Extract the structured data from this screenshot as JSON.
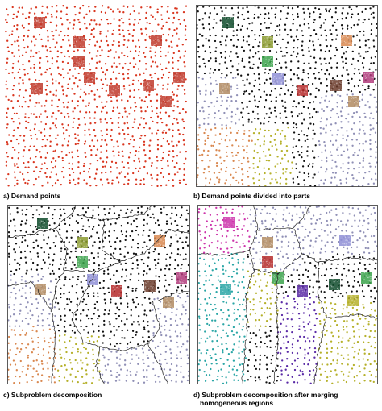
{
  "captions": {
    "a": "a) Demand points",
    "b": "b) Demand points divided into parts",
    "c": "c) Subproblem decomposition",
    "d_line1": "d) Subproblem decomposition after merging",
    "d_line2": "homogeneous regions"
  },
  "colors": {
    "demand_points": "#d9351e",
    "cluster_red": "#c0392b",
    "dark_green": "#0e4a2a",
    "olive": "#8a9a2e",
    "green": "#3aa24a",
    "lavender": "#8f8fd6",
    "salmon": "#d98850",
    "brown": "#6b3b2a",
    "crimson": "#b52a2a",
    "magenta": "#b03a7a",
    "tan": "#b08a60",
    "pink_region": "#cc33aa",
    "teal_region": "#2aa6a6",
    "purple_region": "#5a2aa6",
    "yellow_region": "#b5b02a",
    "grey_region": "#8f8fb5",
    "black_points": "#111111",
    "boundary": "#222222"
  }
}
